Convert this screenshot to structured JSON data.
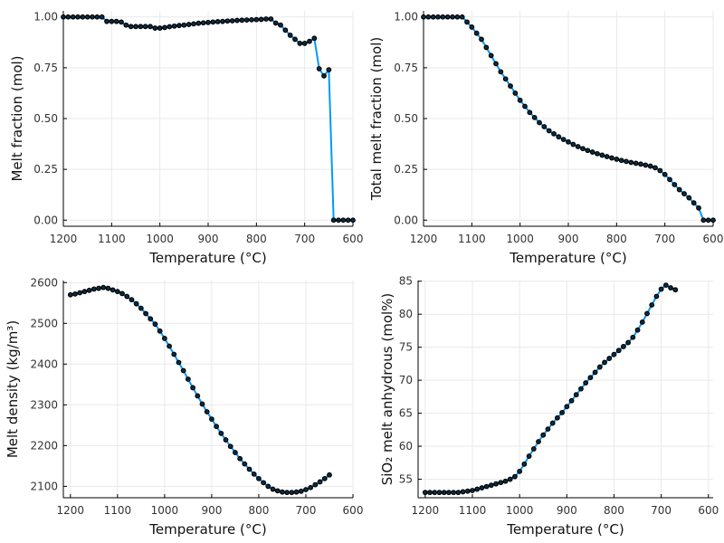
{
  "chart_data": [
    {
      "type": "line",
      "xlabel": "Temperature (°C)",
      "ylabel": "Melt fraction (mol)",
      "xlim": [
        1200,
        600
      ],
      "ylim": [
        -0.03,
        1.03
      ],
      "xticks": [
        1200,
        1100,
        1000,
        900,
        800,
        700,
        600
      ],
      "yticks": [
        0.0,
        0.25,
        0.5,
        0.75,
        1.0
      ],
      "ytick_labels": [
        "0.00",
        "0.25",
        "0.50",
        "0.75",
        "1.00"
      ],
      "grid": true,
      "line_color": "#009AFA",
      "marker_color": "#0A2E45",
      "x": [
        1200,
        1190,
        1180,
        1170,
        1160,
        1150,
        1140,
        1130,
        1120,
        1110,
        1100,
        1090,
        1080,
        1070,
        1060,
        1050,
        1040,
        1030,
        1020,
        1010,
        1000,
        990,
        980,
        970,
        960,
        950,
        940,
        930,
        920,
        910,
        900,
        890,
        880,
        870,
        860,
        850,
        840,
        830,
        820,
        810,
        800,
        790,
        780,
        770,
        760,
        750,
        740,
        730,
        720,
        710,
        700,
        690,
        680,
        670,
        660,
        650,
        640,
        630,
        620,
        610,
        600
      ],
      "y": [
        1.0,
        1.0,
        1.0,
        1.0,
        1.0,
        1.0,
        1.0,
        1.0,
        1.0,
        0.978,
        0.978,
        0.978,
        0.975,
        0.96,
        0.953,
        0.953,
        0.953,
        0.953,
        0.953,
        0.945,
        0.945,
        0.948,
        0.952,
        0.955,
        0.958,
        0.96,
        0.963,
        0.966,
        0.969,
        0.971,
        0.973,
        0.975,
        0.977,
        0.978,
        0.98,
        0.981,
        0.983,
        0.984,
        0.985,
        0.986,
        0.987,
        0.988,
        0.99,
        0.99,
        0.97,
        0.96,
        0.935,
        0.91,
        0.89,
        0.87,
        0.87,
        0.88,
        0.895,
        0.745,
        0.71,
        0.74,
        0.0,
        0.0,
        0.0,
        0.0,
        0.0
      ]
    },
    {
      "type": "line",
      "xlabel": "Temperature (°C)",
      "ylabel": "Total melt fraction (mol)",
      "xlim": [
        1200,
        600
      ],
      "ylim": [
        -0.03,
        1.03
      ],
      "xticks": [
        1200,
        1100,
        1000,
        900,
        800,
        700,
        600
      ],
      "yticks": [
        0.0,
        0.25,
        0.5,
        0.75,
        1.0
      ],
      "ytick_labels": [
        "0.00",
        "0.25",
        "0.50",
        "0.75",
        "1.00"
      ],
      "grid": true,
      "line_color": "#009AFA",
      "marker_color": "#0A2E45",
      "x": [
        1200,
        1190,
        1180,
        1170,
        1160,
        1150,
        1140,
        1130,
        1120,
        1110,
        1100,
        1090,
        1080,
        1070,
        1060,
        1050,
        1040,
        1030,
        1020,
        1010,
        1000,
        990,
        980,
        970,
        960,
        950,
        940,
        930,
        920,
        910,
        900,
        890,
        880,
        870,
        860,
        850,
        840,
        830,
        820,
        810,
        800,
        790,
        780,
        770,
        760,
        750,
        740,
        730,
        720,
        710,
        700,
        690,
        680,
        670,
        660,
        650,
        640,
        630,
        620,
        610,
        600
      ],
      "y": [
        1.0,
        1.0,
        1.0,
        1.0,
        1.0,
        1.0,
        1.0,
        1.0,
        1.0,
        0.975,
        0.95,
        0.92,
        0.89,
        0.85,
        0.81,
        0.77,
        0.73,
        0.695,
        0.66,
        0.625,
        0.59,
        0.56,
        0.53,
        0.505,
        0.48,
        0.46,
        0.44,
        0.425,
        0.41,
        0.397,
        0.385,
        0.373,
        0.362,
        0.352,
        0.343,
        0.335,
        0.327,
        0.32,
        0.313,
        0.306,
        0.3,
        0.294,
        0.289,
        0.284,
        0.28,
        0.276,
        0.271,
        0.266,
        0.258,
        0.244,
        0.225,
        0.2,
        0.175,
        0.15,
        0.13,
        0.11,
        0.085,
        0.06,
        0.0,
        0.0,
        0.0
      ]
    },
    {
      "type": "line",
      "xlabel": "Temperature (°C)",
      "ylabel": "Melt density (kg/m³)",
      "xlim": [
        1215,
        600
      ],
      "ylim": [
        2072,
        2605
      ],
      "xticks": [
        1200,
        1100,
        1000,
        900,
        800,
        700,
        600
      ],
      "yticks": [
        2100,
        2200,
        2300,
        2400,
        2500,
        2600
      ],
      "ytick_labels": [
        "2100",
        "2200",
        "2300",
        "2400",
        "2500",
        "2600"
      ],
      "grid": true,
      "line_color": "#009AFA",
      "marker_color": "#0A2E45",
      "x": [
        1200,
        1190,
        1180,
        1170,
        1160,
        1150,
        1140,
        1130,
        1120,
        1110,
        1100,
        1090,
        1080,
        1070,
        1060,
        1050,
        1040,
        1030,
        1020,
        1010,
        1000,
        990,
        980,
        970,
        960,
        950,
        940,
        930,
        920,
        910,
        900,
        890,
        880,
        870,
        860,
        850,
        840,
        830,
        820,
        810,
        800,
        790,
        780,
        770,
        760,
        750,
        740,
        730,
        720,
        710,
        700,
        690,
        680,
        670,
        660,
        650
      ],
      "y": [
        2570,
        2572,
        2575,
        2578,
        2581,
        2584,
        2586,
        2588,
        2586,
        2582,
        2578,
        2573,
        2566,
        2558,
        2548,
        2537,
        2524,
        2511,
        2498,
        2481,
        2463,
        2444,
        2424,
        2404,
        2384,
        2363,
        2342,
        2322,
        2302,
        2283,
        2265,
        2247,
        2230,
        2214,
        2198,
        2183,
        2168,
        2155,
        2142,
        2130,
        2119,
        2109,
        2100,
        2093,
        2089,
        2086,
        2085,
        2085,
        2086,
        2088,
        2092,
        2097,
        2104,
        2111,
        2119,
        2128
      ]
    },
    {
      "type": "line",
      "xlabel": "Temperature (°C)",
      "ylabel": "SiO₂ melt anhydrous (mol%)",
      "xlim": [
        1215,
        590
      ],
      "ylim": [
        52.2,
        85.1
      ],
      "xticks": [
        1200,
        1100,
        1000,
        900,
        800,
        700,
        600
      ],
      "yticks": [
        55,
        60,
        65,
        70,
        75,
        80,
        85
      ],
      "ytick_labels": [
        "55",
        "60",
        "65",
        "70",
        "75",
        "80",
        "85"
      ],
      "grid": true,
      "line_color": "#009AFA",
      "marker_color": "#0A2E45",
      "x": [
        1200,
        1190,
        1180,
        1170,
        1160,
        1150,
        1140,
        1130,
        1120,
        1110,
        1100,
        1090,
        1080,
        1070,
        1060,
        1050,
        1040,
        1030,
        1020,
        1010,
        1000,
        990,
        980,
        970,
        960,
        950,
        940,
        930,
        920,
        910,
        900,
        890,
        880,
        870,
        860,
        850,
        840,
        830,
        820,
        810,
        800,
        790,
        780,
        770,
        760,
        750,
        740,
        730,
        720,
        710,
        700,
        690,
        680,
        670,
        660,
        650
      ],
      "y": [
        53.0,
        53.0,
        53.0,
        53.0,
        53.0,
        53.0,
        53.0,
        53.0,
        53.1,
        53.2,
        53.3,
        53.5,
        53.7,
        53.9,
        54.1,
        54.3,
        54.5,
        54.7,
        55.0,
        55.4,
        56.2,
        57.3,
        58.5,
        59.6,
        60.7,
        61.7,
        62.6,
        63.5,
        64.3,
        65.1,
        66.0,
        66.9,
        67.8,
        68.7,
        69.6,
        70.4,
        71.2,
        72.0,
        72.7,
        73.3,
        73.9,
        74.5,
        75.1,
        75.7,
        76.5,
        77.6,
        78.8,
        80.1,
        81.4,
        82.7,
        83.8,
        84.4,
        84.0,
        83.7,
        null,
        null
      ]
    }
  ]
}
